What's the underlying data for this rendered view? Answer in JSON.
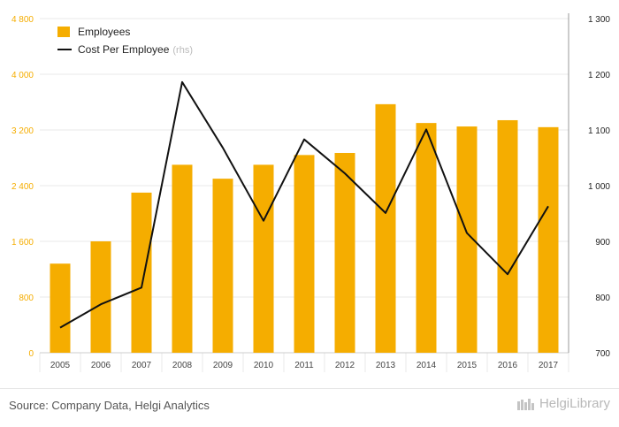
{
  "chart_data": {
    "type": "bar",
    "categories": [
      "2005",
      "2006",
      "2007",
      "2008",
      "2009",
      "2010",
      "2011",
      "2012",
      "2013",
      "2014",
      "2015",
      "2016",
      "2017"
    ],
    "series": [
      {
        "name": "Employees",
        "axis": "left",
        "kind": "bar",
        "color": "#f5ad00",
        "values": [
          1280,
          1600,
          2300,
          2700,
          2500,
          2700,
          2840,
          2870,
          3570,
          3300,
          3250,
          3340,
          3240
        ]
      },
      {
        "name": "Cost Per Employee",
        "axis": "right",
        "kind": "line",
        "color": "#111111",
        "values": [
          745,
          787,
          817,
          1186,
          1068,
          937,
          1083,
          1022,
          951,
          1101,
          915,
          841,
          963
        ]
      }
    ],
    "y_left": {
      "min": 0,
      "max": 4800,
      "ticks": [
        "0",
        "800",
        "1 600",
        "2 400",
        "3 200",
        "4 000",
        "4 800"
      ],
      "color": "#f5ad00"
    },
    "y_right": {
      "min": 700,
      "max": 1300,
      "ticks": [
        "700",
        "800",
        "900",
        "1 000",
        "1 100",
        "1 200",
        "1 300"
      ]
    },
    "legend": {
      "placement": "top-left",
      "items": [
        {
          "label": "Employees",
          "suffix": ""
        },
        {
          "label": "Cost Per Employee",
          "suffix": "(rhs)"
        }
      ]
    },
    "grid": true
  },
  "footer": {
    "source": "Source: Company Data, Helgi Analytics",
    "brand": "HelgiLibrary"
  }
}
